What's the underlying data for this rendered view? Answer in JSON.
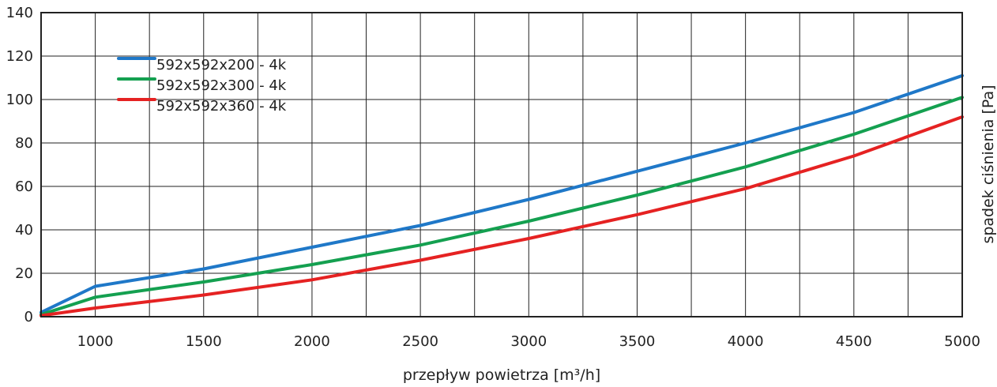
{
  "chart_data": {
    "type": "line",
    "title": "",
    "xlabel": "przepływ powietrza [m³/h]",
    "ylabel": "spadek ciśnienia [Pa]",
    "xlim": [
      750,
      5000
    ],
    "ylim": [
      0,
      140
    ],
    "x_ticks": [
      1000,
      1500,
      2000,
      2500,
      3000,
      3500,
      4000,
      4500,
      5000
    ],
    "y_ticks": [
      0,
      20,
      40,
      60,
      80,
      100,
      120,
      140
    ],
    "grid": true,
    "legend_position": "top-left",
    "series": [
      {
        "name": "592x592x200 - 4k",
        "color": "#1f78c8",
        "points": [
          [
            750,
            2
          ],
          [
            1000,
            14
          ],
          [
            1500,
            22
          ],
          [
            2000,
            32
          ],
          [
            2500,
            42
          ],
          [
            3000,
            54
          ],
          [
            3500,
            67
          ],
          [
            4000,
            80
          ],
          [
            4500,
            94
          ],
          [
            5000,
            111
          ]
        ]
      },
      {
        "name": "592x592x300 - 4k",
        "color": "#14a050",
        "points": [
          [
            750,
            1
          ],
          [
            1000,
            9
          ],
          [
            1500,
            16
          ],
          [
            2000,
            24
          ],
          [
            2500,
            33
          ],
          [
            3000,
            44
          ],
          [
            3500,
            56
          ],
          [
            4000,
            69
          ],
          [
            4500,
            84
          ],
          [
            5000,
            101
          ]
        ]
      },
      {
        "name": "592x592x360 - 4k",
        "color": "#e52222",
        "points": [
          [
            750,
            0.5
          ],
          [
            1000,
            4
          ],
          [
            1500,
            10
          ],
          [
            2000,
            17
          ],
          [
            2500,
            26
          ],
          [
            3000,
            36
          ],
          [
            3500,
            47
          ],
          [
            4000,
            59
          ],
          [
            4500,
            74
          ],
          [
            5000,
            92
          ]
        ]
      }
    ]
  }
}
